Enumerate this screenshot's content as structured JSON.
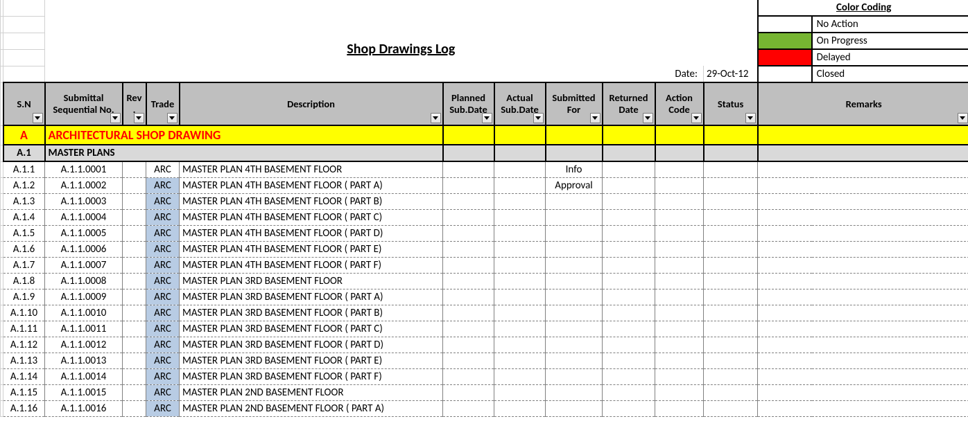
{
  "title": "Shop Drawings Log",
  "date_label": "Date:",
  "date_value": "29-Oct-12",
  "legend": {
    "title": "Color Coding",
    "items": [
      {
        "color": "#ffffff",
        "label": "No Action"
      },
      {
        "color": "#76b531",
        "label": "On Progress"
      },
      {
        "color": "#ff0000",
        "label": "Delayed"
      },
      {
        "color": "#ffffff",
        "label": "Closed"
      }
    ]
  },
  "columns": {
    "sn": "S.N",
    "seq1": "Submittal",
    "seq2": "Sequential No.",
    "rev1": "Rev",
    "rev2": ".",
    "trade": "Trade",
    "desc": "Description",
    "planned1": "Planned",
    "planned2": "Sub.Date",
    "actual1": "Actual",
    "actual2": "Sub.Date",
    "subfor1": "Submitted",
    "subfor2": "For",
    "ret1": "Returned",
    "ret2": "Date",
    "action1": "Action",
    "action2": "Code",
    "status": "Status",
    "remarks": "Remarks"
  },
  "col_widths": {
    "rowlabel": 4,
    "sn": 60,
    "seq": 112,
    "rev": 34,
    "trade": 48,
    "desc": 380,
    "planned": 74,
    "actual": 74,
    "subfor": 82,
    "ret": 76,
    "action": 70,
    "status": 78,
    "remarks": 228
  },
  "section": {
    "sn": "A",
    "title": "ARCHITECTURAL SHOP DRAWING"
  },
  "subsection": {
    "sn": "A.1",
    "title": "MASTER PLANS"
  },
  "rows": [
    {
      "sn": "A.1.1",
      "seq": "A.1.1.0001",
      "trade": "ARC",
      "hl": false,
      "desc": "MASTER PLAN  4TH BASEMENT FLOOR",
      "subfor": "Info"
    },
    {
      "sn": "A.1.2",
      "seq": "A.1.1.0002",
      "trade": "ARC",
      "hl": true,
      "desc": "MASTER PLAN  4TH BASEMENT FLOOR ( PART A)",
      "subfor": "Approval"
    },
    {
      "sn": "A.1.3",
      "seq": "A.1.1.0003",
      "trade": "ARC",
      "hl": true,
      "desc": "MASTER PLAN  4TH BASEMENT FLOOR ( PART B)",
      "subfor": ""
    },
    {
      "sn": "A.1.4",
      "seq": "A.1.1.0004",
      "trade": "ARC",
      "hl": true,
      "desc": "MASTER PLAN  4TH BASEMENT FLOOR ( PART C)",
      "subfor": ""
    },
    {
      "sn": "A.1.5",
      "seq": "A.1.1.0005",
      "trade": "ARC",
      "hl": true,
      "desc": "MASTER PLAN  4TH BASEMENT FLOOR ( PART D)",
      "subfor": ""
    },
    {
      "sn": "A.1.6",
      "seq": "A.1.1.0006",
      "trade": "ARC",
      "hl": true,
      "desc": "MASTER PLAN  4TH BASEMENT FLOOR ( PART E)",
      "subfor": ""
    },
    {
      "sn": "A.1.7",
      "seq": "A.1.1.0007",
      "trade": "ARC",
      "hl": true,
      "desc": "MASTER PLAN  4TH BASEMENT FLOOR ( PART F)",
      "subfor": ""
    },
    {
      "sn": "A.1.8",
      "seq": "A.1.1.0008",
      "trade": "ARC",
      "hl": true,
      "desc": "MASTER PLAN  3RD BASEMENT FLOOR",
      "subfor": ""
    },
    {
      "sn": "A.1.9",
      "seq": "A.1.1.0009",
      "trade": "ARC",
      "hl": true,
      "desc": "MASTER PLAN  3RD BASEMENT FLOOR ( PART A)",
      "subfor": ""
    },
    {
      "sn": "A.1.10",
      "seq": "A.1.1.0010",
      "trade": "ARC",
      "hl": true,
      "desc": "MASTER PLAN  3RD BASEMENT FLOOR ( PART B)",
      "subfor": ""
    },
    {
      "sn": "A.1.11",
      "seq": "A.1.1.0011",
      "trade": "ARC",
      "hl": true,
      "desc": "MASTER PLAN  3RD BASEMENT FLOOR ( PART C)",
      "subfor": ""
    },
    {
      "sn": "A.1.12",
      "seq": "A.1.1.0012",
      "trade": "ARC",
      "hl": true,
      "desc": "MASTER PLAN  3RD BASEMENT FLOOR ( PART D)",
      "subfor": ""
    },
    {
      "sn": "A.1.13",
      "seq": "A.1.1.0013",
      "trade": "ARC",
      "hl": true,
      "desc": "MASTER PLAN  3RD BASEMENT FLOOR ( PART E)",
      "subfor": ""
    },
    {
      "sn": "A.1.14",
      "seq": "A.1.1.0014",
      "trade": "ARC",
      "hl": true,
      "desc": "MASTER PLAN  3RD BASEMENT FLOOR ( PART F)",
      "subfor": ""
    },
    {
      "sn": "A.1.15",
      "seq": "A.1.1.0015",
      "trade": "ARC",
      "hl": true,
      "desc": "MASTER PLAN  2ND BASEMENT FLOOR",
      "subfor": ""
    },
    {
      "sn": "A.1.16",
      "seq": "A.1.1.0016",
      "trade": "ARC",
      "hl": true,
      "desc": "MASTER PLAN  2ND BASEMENT FLOOR ( PART A)",
      "subfor": ""
    }
  ]
}
